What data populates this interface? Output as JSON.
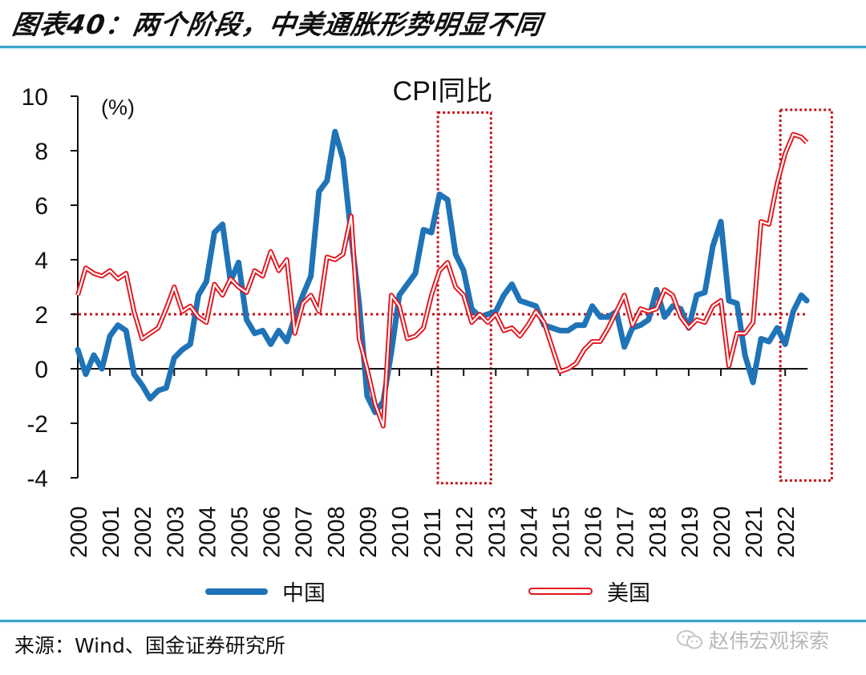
{
  "header": {
    "title": "图表40：两个阶段，中美通胀形势明显不同"
  },
  "footer": {
    "source": "来源：Wind、国金证券研究所",
    "watermark": "赵伟宏观探索"
  },
  "colors": {
    "china": "#1f73b7",
    "us": "#e3141c",
    "reference": "#c0141c",
    "rule": "#3aa6c8"
  },
  "chart_data": {
    "type": "line",
    "title": "CPI同比",
    "ylabel": "(%)",
    "xlabel": "",
    "ylim": [
      -4,
      10
    ],
    "yticks": [
      "10",
      "8",
      "6",
      "4",
      "2",
      "0",
      "-2",
      "-4"
    ],
    "xlim": [
      2000.0,
      2022.7
    ],
    "xticks": [
      "2000",
      "2001",
      "2002",
      "2003",
      "2004",
      "2005",
      "2006",
      "2007",
      "2008",
      "2009",
      "2010",
      "2011",
      "2012",
      "2013",
      "2014",
      "2015",
      "2016",
      "2017",
      "2018",
      "2019",
      "2020",
      "2021",
      "2022"
    ],
    "reference_line": {
      "y": 2,
      "style": "dotted"
    },
    "highlight_boxes": [
      {
        "x_range": [
          2011.2,
          2012.85
        ],
        "y_range": [
          -4.2,
          9.4
        ]
      },
      {
        "x_range": [
          2021.85,
          2023.45
        ],
        "y_range": [
          -4.1,
          9.5
        ]
      }
    ],
    "legend": {
      "placement": "bottom",
      "entries": [
        "中国",
        "美国"
      ]
    },
    "grid": false,
    "x": [
      2000.0,
      2000.25,
      2000.5,
      2000.75,
      2001.0,
      2001.25,
      2001.5,
      2001.75,
      2002.0,
      2002.25,
      2002.5,
      2002.75,
      2003.0,
      2003.25,
      2003.5,
      2003.75,
      2004.0,
      2004.25,
      2004.5,
      2004.75,
      2005.0,
      2005.25,
      2005.5,
      2005.75,
      2006.0,
      2006.25,
      2006.5,
      2006.75,
      2007.0,
      2007.25,
      2007.5,
      2007.75,
      2008.0,
      2008.25,
      2008.5,
      2008.75,
      2009.0,
      2009.25,
      2009.5,
      2009.75,
      2010.0,
      2010.25,
      2010.5,
      2010.75,
      2011.0,
      2011.25,
      2011.5,
      2011.75,
      2012.0,
      2012.25,
      2012.5,
      2012.75,
      2013.0,
      2013.25,
      2013.5,
      2013.75,
      2014.0,
      2014.25,
      2014.5,
      2014.75,
      2015.0,
      2015.25,
      2015.5,
      2015.75,
      2016.0,
      2016.25,
      2016.5,
      2016.75,
      2017.0,
      2017.25,
      2017.5,
      2017.75,
      2018.0,
      2018.25,
      2018.5,
      2018.75,
      2019.0,
      2019.25,
      2019.5,
      2019.75,
      2020.0,
      2020.25,
      2020.5,
      2020.75,
      2021.0,
      2021.25,
      2021.5,
      2021.75,
      2022.0,
      2022.25,
      2022.5,
      2022.67
    ],
    "series": [
      {
        "name": "中国",
        "values": [
          0.7,
          -0.2,
          0.5,
          0.0,
          1.2,
          1.6,
          1.4,
          -0.2,
          -0.6,
          -1.1,
          -0.8,
          -0.7,
          0.4,
          0.7,
          0.9,
          2.7,
          3.2,
          5.0,
          5.3,
          3.2,
          3.9,
          1.8,
          1.3,
          1.4,
          0.9,
          1.4,
          1.0,
          1.9,
          2.7,
          3.4,
          6.5,
          6.9,
          8.7,
          7.7,
          4.9,
          2.4,
          -1.0,
          -1.6,
          -1.2,
          0.6,
          2.7,
          3.1,
          3.5,
          5.1,
          5.0,
          6.4,
          6.2,
          4.2,
          3.6,
          2.2,
          1.9,
          2.0,
          2.1,
          2.7,
          3.1,
          2.5,
          2.4,
          2.3,
          1.6,
          1.5,
          1.4,
          1.4,
          1.6,
          1.6,
          2.3,
          1.9,
          1.9,
          2.1,
          0.8,
          1.5,
          1.6,
          1.8,
          2.9,
          1.9,
          2.3,
          2.2,
          1.5,
          2.7,
          2.8,
          4.5,
          5.4,
          2.5,
          2.4,
          0.5,
          -0.5,
          1.1,
          1.0,
          1.5,
          0.9,
          2.1,
          2.7,
          2.5
        ]
      },
      {
        "name": "美国",
        "values": [
          2.7,
          3.7,
          3.5,
          3.4,
          3.6,
          3.3,
          3.5,
          2.1,
          1.1,
          1.3,
          1.5,
          2.2,
          3.0,
          2.1,
          2.3,
          1.9,
          1.7,
          3.1,
          2.7,
          3.3,
          3.0,
          2.8,
          3.6,
          3.4,
          4.3,
          3.6,
          4.0,
          1.3,
          2.4,
          2.7,
          2.1,
          4.1,
          4.0,
          4.2,
          5.6,
          1.1,
          0.0,
          -1.3,
          -2.1,
          2.7,
          2.3,
          1.1,
          1.2,
          1.5,
          2.7,
          3.6,
          3.9,
          3.0,
          2.7,
          1.7,
          2.0,
          1.7,
          2.0,
          1.4,
          1.5,
          1.2,
          1.6,
          2.1,
          1.7,
          0.8,
          -0.1,
          0.0,
          0.2,
          0.7,
          1.0,
          1.0,
          1.5,
          2.1,
          2.7,
          1.6,
          2.2,
          2.1,
          2.2,
          2.9,
          2.7,
          1.9,
          1.5,
          1.8,
          1.7,
          2.3,
          2.5,
          0.1,
          1.3,
          1.3,
          1.7,
          5.4,
          5.3,
          6.8,
          7.9,
          8.6,
          8.5,
          8.3
        ]
      }
    ]
  }
}
